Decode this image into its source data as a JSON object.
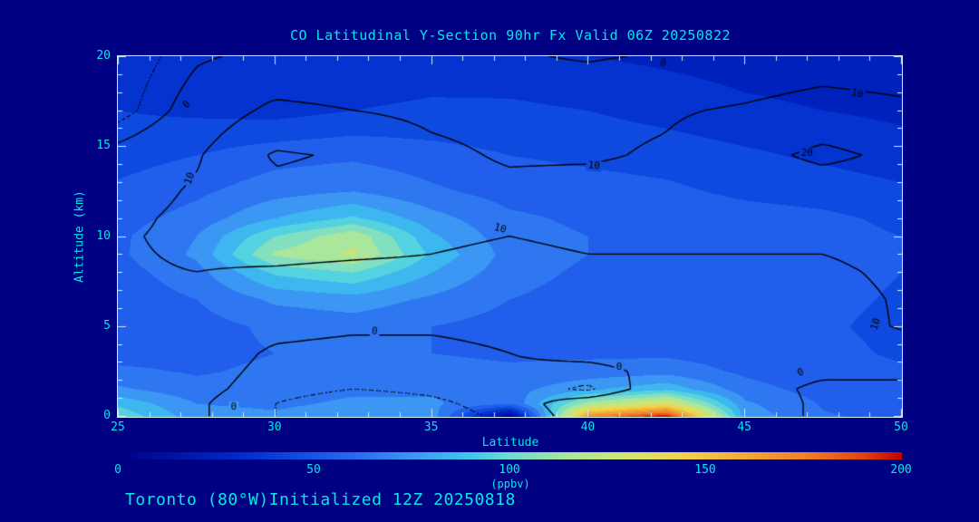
{
  "colors": {
    "background": "#000082",
    "text": "#00E8E8",
    "frame": "#CDEDF2",
    "contour_line": "#000000"
  },
  "chart_data": {
    "type": "heatmap",
    "title": "CO Latitudinal Y-Section 90hr  Fx Valid 06Z 20250822",
    "xlabel": "Latitude",
    "ylabel": "Altitude (km)",
    "footer_note": "Toronto (80°W)Initialized 12Z 20250818",
    "x_range": [
      25,
      50
    ],
    "y_range": [
      0,
      20
    ],
    "x_ticks": [
      25,
      30,
      35,
      40,
      45,
      50
    ],
    "y_ticks": [
      0,
      5,
      10,
      15,
      20
    ],
    "minor_tick_step": 1,
    "colorbar": {
      "min": 0,
      "max": 200,
      "ticks": [
        0,
        50,
        100,
        150,
        200
      ],
      "units": "(ppbv)",
      "gradient": [
        {
          "v": 0,
          "c": "#000082"
        },
        {
          "v": 30,
          "c": "#0028C8"
        },
        {
          "v": 45,
          "c": "#0F4AE0"
        },
        {
          "v": 60,
          "c": "#2868F0"
        },
        {
          "v": 75,
          "c": "#3C96F4"
        },
        {
          "v": 90,
          "c": "#3CC8EC"
        },
        {
          "v": 100,
          "c": "#6EDCD2"
        },
        {
          "v": 115,
          "c": "#AAE69B"
        },
        {
          "v": 130,
          "c": "#D2E66E"
        },
        {
          "v": 145,
          "c": "#F0D24A"
        },
        {
          "v": 160,
          "c": "#F0AA36"
        },
        {
          "v": 175,
          "c": "#F08228"
        },
        {
          "v": 190,
          "c": "#E14610"
        },
        {
          "v": 200,
          "c": "#C30000"
        }
      ]
    },
    "x_latitudes": [
      25,
      27.5,
      30,
      32.5,
      35,
      37.5,
      40,
      42.5,
      45,
      47.5,
      50
    ],
    "y_altitudes_km": [
      0,
      0.7,
      1.5,
      2.5,
      3.5,
      5,
      6.5,
      8,
      9,
      10,
      11,
      12.5,
      14.5,
      17,
      20
    ],
    "fill_values_ppbv": [
      [
        98,
        74,
        72,
        76,
        76,
        4,
        170,
        198,
        76,
        61,
        57
      ],
      [
        88,
        70,
        68,
        72,
        72,
        60,
        115,
        135,
        72,
        59,
        55
      ],
      [
        72,
        63,
        64,
        68,
        68,
        66,
        78,
        88,
        64,
        56,
        53
      ],
      [
        62,
        59,
        62,
        64,
        64,
        62,
        64,
        66,
        58,
        53,
        51
      ],
      [
        56,
        57,
        60,
        62,
        60,
        58,
        58,
        58,
        55,
        52,
        49
      ],
      [
        53,
        56,
        62,
        64,
        60,
        56,
        55,
        54,
        53,
        51,
        48
      ],
      [
        54,
        60,
        72,
        76,
        68,
        60,
        56,
        55,
        54,
        52,
        49
      ],
      [
        56,
        66,
        92,
        100,
        80,
        64,
        58,
        56,
        55,
        53,
        50
      ],
      [
        58,
        72,
        112,
        122,
        88,
        66,
        60,
        58,
        56,
        53,
        50
      ],
      [
        58,
        70,
        100,
        118,
        82,
        64,
        60,
        58,
        56,
        53,
        50
      ],
      [
        56,
        64,
        80,
        92,
        74,
        62,
        58,
        56,
        54,
        52,
        48
      ],
      [
        52,
        58,
        66,
        70,
        62,
        56,
        54,
        52,
        48,
        46,
        42
      ],
      [
        46,
        50,
        56,
        58,
        54,
        50,
        48,
        46,
        42,
        38,
        34
      ],
      [
        40,
        38,
        36,
        40,
        42,
        42,
        40,
        36,
        32,
        30,
        28
      ],
      [
        34,
        32,
        30,
        32,
        34,
        33,
        30,
        28,
        26,
        25,
        24
      ]
    ],
    "overlay_contours": {
      "solid_levels": [
        0,
        10,
        20
      ],
      "dotted_levels": [
        -5
      ],
      "values": [
        [
          2,
          1,
          -5,
          -8,
          -7,
          -4,
          3,
          8,
          3,
          -1,
          -2
        ],
        [
          3,
          1,
          -5,
          -8,
          -6,
          -3,
          4,
          9,
          3,
          -1,
          -2
        ],
        [
          4,
          2,
          -3,
          -5,
          -4,
          -2,
          -6,
          5,
          2,
          -1,
          -1
        ],
        [
          5,
          3,
          -2,
          -3,
          -3,
          -1,
          -2,
          2,
          2,
          1,
          1
        ],
        [
          6,
          4,
          -1,
          -2,
          -2,
          0,
          2,
          3,
          3,
          2,
          4
        ],
        [
          7,
          6,
          2,
          1,
          1,
          2,
          5,
          5,
          5,
          4,
          11
        ],
        [
          8,
          8,
          6,
          5,
          5,
          6,
          7,
          7,
          7,
          6,
          11
        ],
        [
          9,
          10,
          9,
          8,
          8,
          8,
          9,
          9,
          9,
          8,
          12
        ],
        [
          9,
          11,
          12,
          11,
          10,
          9,
          10,
          10,
          10,
          10,
          13
        ],
        [
          9,
          12,
          14,
          13,
          11,
          10,
          11,
          11,
          11,
          11,
          14
        ],
        [
          8,
          12,
          16,
          15,
          12,
          11,
          12,
          12,
          12,
          12,
          14
        ],
        [
          6,
          11,
          18,
          17,
          13,
          12,
          13,
          13,
          14,
          15,
          15
        ],
        [
          3,
          9,
          21,
          19,
          12,
          9,
          9,
          11,
          17,
          22,
          18
        ],
        [
          -8,
          4,
          12,
          10,
          8,
          7,
          8,
          9,
          11,
          14,
          12
        ],
        [
          -10,
          -1,
          2,
          3,
          2,
          1,
          -1,
          1,
          3,
          5,
          4
        ]
      ]
    },
    "contour_labels": [
      {
        "text": "0",
        "lat": 27.2,
        "alt": 17.3,
        "rot": -40
      },
      {
        "text": "10",
        "lat": 27.3,
        "alt": 13.2,
        "rot": -70
      },
      {
        "text": "10",
        "lat": 37.2,
        "alt": 10.4,
        "rot": 15
      },
      {
        "text": "10",
        "lat": 40.2,
        "alt": 13.9,
        "rot": 5
      },
      {
        "text": "0",
        "lat": 42.4,
        "alt": 19.6,
        "rot": 8
      },
      {
        "text": "10",
        "lat": 48.6,
        "alt": 17.9,
        "rot": 12
      },
      {
        "text": "20",
        "lat": 47.0,
        "alt": 14.6,
        "rot": 0
      },
      {
        "text": "10",
        "lat": 49.2,
        "alt": 5.1,
        "rot": -72
      },
      {
        "text": "0",
        "lat": 33.2,
        "alt": 4.7,
        "rot": 5
      },
      {
        "text": "0",
        "lat": 41.0,
        "alt": 2.7,
        "rot": 0
      },
      {
        "text": "0",
        "lat": 46.8,
        "alt": 2.4,
        "rot": -25
      },
      {
        "text": "0",
        "lat": 28.7,
        "alt": 0.5,
        "rot": 0
      }
    ]
  }
}
